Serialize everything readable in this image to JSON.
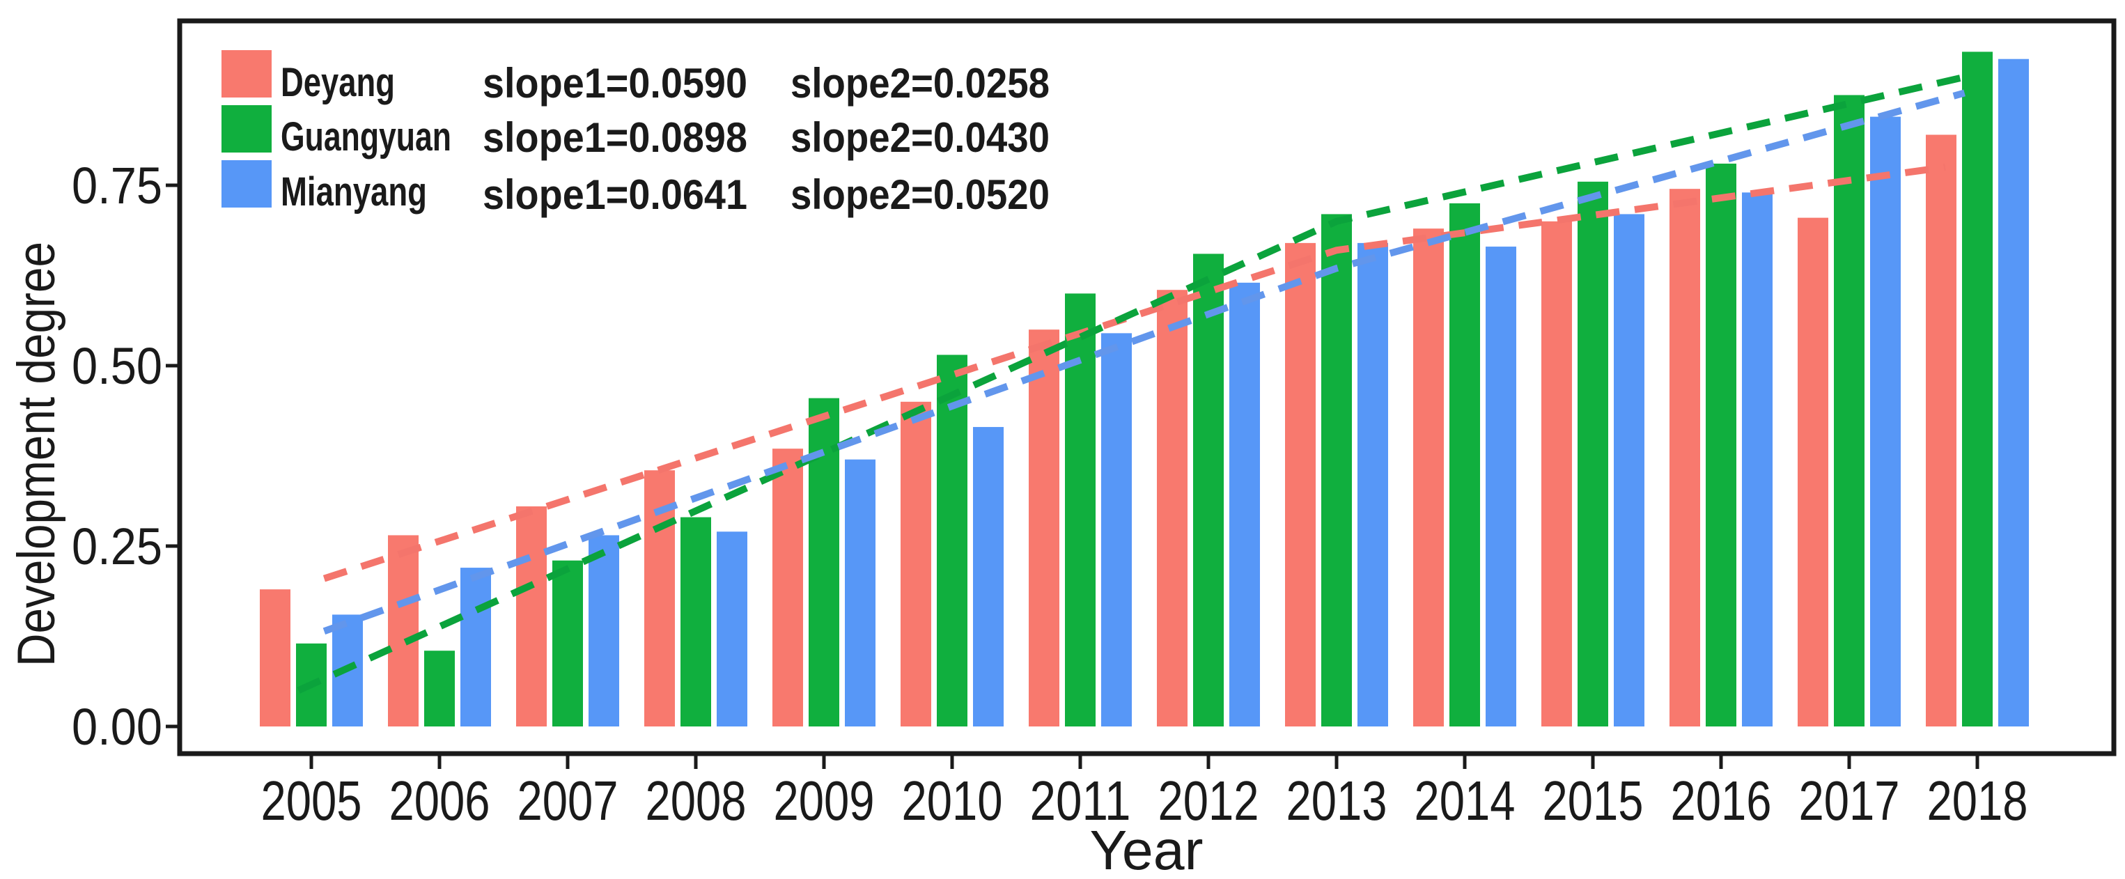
{
  "figure": {
    "xlabel": "Year",
    "ylabel": "Development degree"
  },
  "legend": {
    "position": "top-left",
    "items": [
      {
        "label": "Deyang",
        "swatch_color": "#F8796E"
      },
      {
        "label": "Guangyuan",
        "swatch_color": "#10AF3E"
      },
      {
        "label": "Mianyang",
        "swatch_color": "#5797F7"
      }
    ]
  },
  "slope_annotations": [
    {
      "series": "Deyang",
      "slope1": "slope1=0.0590",
      "slope2": "slope2=0.0258",
      "text_color": "#F5857D"
    },
    {
      "series": "Guangyuan",
      "slope1": "slope1=0.0898",
      "slope2": "slope2=0.0430",
      "text_color": "#0CA74B"
    },
    {
      "series": "Mianyang",
      "slope1": "slope1=0.0641",
      "slope2": "slope2=0.0520",
      "text_color": "#2E7FD8"
    }
  ],
  "chart_data": {
    "type": "bar",
    "title": "",
    "xlabel": "Year",
    "ylabel": "Development degree",
    "categories": [
      2005,
      2006,
      2007,
      2008,
      2009,
      2010,
      2011,
      2012,
      2013,
      2014,
      2015,
      2016,
      2017,
      2018
    ],
    "series": [
      {
        "name": "Deyang",
        "color": "#F8796E",
        "values": [
          0.19,
          0.265,
          0.305,
          0.355,
          0.385,
          0.45,
          0.55,
          0.605,
          0.67,
          0.69,
          0.7,
          0.745,
          0.705,
          0.82
        ]
      },
      {
        "name": "Guangyuan",
        "color": "#10AF3E",
        "values": [
          0.115,
          0.105,
          0.23,
          0.29,
          0.455,
          0.515,
          0.6,
          0.655,
          0.71,
          0.725,
          0.755,
          0.78,
          0.875,
          0.935
        ]
      },
      {
        "name": "Mianyang",
        "color": "#5797F7",
        "values": [
          0.155,
          0.22,
          0.265,
          0.27,
          0.37,
          0.415,
          0.545,
          0.615,
          0.67,
          0.665,
          0.71,
          0.74,
          0.845,
          0.925
        ]
      }
    ],
    "trend_lines": [
      {
        "name": "Deyang trend",
        "color": "#F4756C",
        "style": "dashed",
        "points": [
          [
            2005.1,
            0.205
          ],
          [
            2013,
            0.66
          ],
          [
            2017.75,
            0.775
          ]
        ]
      },
      {
        "name": "Guangyuan trend",
        "color": "#0BA33C",
        "style": "dashed",
        "points": [
          [
            2004.9,
            0.05
          ],
          [
            2013,
            0.7
          ],
          [
            2017.9,
            0.9
          ]
        ]
      },
      {
        "name": "Mianyang trend",
        "color": "#6296EC",
        "style": "dashed",
        "points": [
          [
            2005.1,
            0.132
          ],
          [
            2013,
            0.635
          ],
          [
            2017.9,
            0.878
          ]
        ]
      }
    ],
    "yticks": [
      0.0,
      0.25,
      0.5,
      0.75
    ],
    "ytick_labels": [
      "0.00",
      "0.25",
      "0.50",
      "0.75"
    ],
    "ylim": [
      0,
      0.98
    ],
    "grid": false,
    "legend_position": "top-left"
  }
}
